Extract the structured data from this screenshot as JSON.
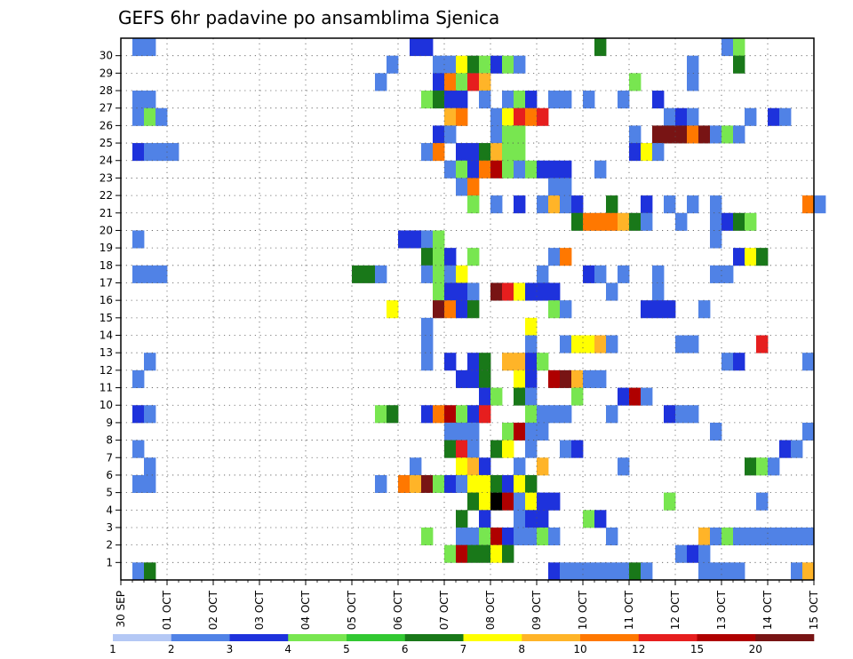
{
  "chart_data": {
    "type": "heatmap",
    "title": "GEFS 6hr padavine po ansamblima Sjenica",
    "xlabel": "",
    "ylabel": "",
    "x_tick_labels": [
      "30 SEP",
      "01 OCT",
      "02 OCT",
      "03 OCT",
      "04 OCT",
      "05 OCT",
      "06 OCT",
      "07 OCT",
      "08 OCT",
      "09 OCT",
      "10 OCT",
      "11 OCT",
      "12 OCT",
      "13 OCT",
      "14 OCT",
      "15 OCT"
    ],
    "y_tick_labels": [
      "1",
      "2",
      "3",
      "4",
      "5",
      "6",
      "7",
      "8",
      "9",
      "10",
      "11",
      "12",
      "13",
      "14",
      "15",
      "16",
      "17",
      "18",
      "19",
      "20",
      "21",
      "22",
      "23",
      "24",
      "25",
      "26",
      "27",
      "28",
      "29",
      "30"
    ],
    "time_steps_per_day": 4,
    "num_members": 31,
    "grid": true,
    "colorbar": {
      "position": "bottom",
      "bounds": [
        1,
        2,
        3,
        4,
        5,
        6,
        7,
        8,
        10,
        12,
        15,
        20
      ],
      "labels": [
        "1",
        "2",
        "3",
        "4",
        "5",
        "6",
        "7",
        "8",
        "10",
        "12",
        "15",
        "20"
      ],
      "colors": [
        "#b4c8f5",
        "#5082e6",
        "#1e32dc",
        "#78e650",
        "#32c832",
        "#197819",
        "#ffff00",
        "#ffb428",
        "#ff7800",
        "#e61e1e",
        "#af0000",
        "#781414"
      ]
    },
    "cells": [
      [
        30,
        1,
        1
      ],
      [
        30,
        2,
        1
      ],
      [
        30,
        25,
        2
      ],
      [
        30,
        26,
        2
      ],
      [
        30,
        41,
        5
      ],
      [
        30,
        52,
        1
      ],
      [
        30,
        53,
        3
      ],
      [
        29,
        23,
        1
      ],
      [
        29,
        27,
        1
      ],
      [
        29,
        28,
        1
      ],
      [
        29,
        29,
        6
      ],
      [
        29,
        30,
        5
      ],
      [
        29,
        31,
        3
      ],
      [
        29,
        32,
        2
      ],
      [
        29,
        33,
        3
      ],
      [
        29,
        34,
        1
      ],
      [
        29,
        49,
        1
      ],
      [
        29,
        53,
        5
      ],
      [
        28,
        22,
        1
      ],
      [
        28,
        27,
        2
      ],
      [
        28,
        28,
        8
      ],
      [
        28,
        29,
        3
      ],
      [
        28,
        30,
        9
      ],
      [
        28,
        31,
        7
      ],
      [
        28,
        44,
        3
      ],
      [
        28,
        49,
        1
      ],
      [
        27,
        1,
        1
      ],
      [
        27,
        2,
        1
      ],
      [
        27,
        26,
        3
      ],
      [
        27,
        27,
        5
      ],
      [
        27,
        28,
        2
      ],
      [
        27,
        29,
        2
      ],
      [
        27,
        31,
        1
      ],
      [
        27,
        33,
        1
      ],
      [
        27,
        34,
        3
      ],
      [
        27,
        35,
        2
      ],
      [
        27,
        37,
        1
      ],
      [
        27,
        38,
        1
      ],
      [
        27,
        40,
        1
      ],
      [
        27,
        43,
        1
      ],
      [
        27,
        46,
        2
      ],
      [
        26,
        1,
        1
      ],
      [
        26,
        2,
        3
      ],
      [
        26,
        3,
        1
      ],
      [
        26,
        28,
        7
      ],
      [
        26,
        29,
        8
      ],
      [
        26,
        32,
        1
      ],
      [
        26,
        33,
        6
      ],
      [
        26,
        34,
        9
      ],
      [
        26,
        35,
        8
      ],
      [
        26,
        36,
        9
      ],
      [
        26,
        47,
        1
      ],
      [
        26,
        48,
        2
      ],
      [
        26,
        49,
        1
      ],
      [
        26,
        54,
        1
      ],
      [
        26,
        56,
        2
      ],
      [
        26,
        57,
        1
      ],
      [
        25,
        27,
        2
      ],
      [
        25,
        28,
        1
      ],
      [
        25,
        32,
        1
      ],
      [
        25,
        33,
        3
      ],
      [
        25,
        34,
        3
      ],
      [
        25,
        44,
        1
      ],
      [
        25,
        46,
        11
      ],
      [
        25,
        47,
        11
      ],
      [
        25,
        48,
        11
      ],
      [
        25,
        49,
        8
      ],
      [
        25,
        50,
        11
      ],
      [
        25,
        51,
        1
      ],
      [
        25,
        52,
        3
      ],
      [
        25,
        53,
        1
      ],
      [
        24,
        1,
        2
      ],
      [
        24,
        2,
        1
      ],
      [
        24,
        3,
        1
      ],
      [
        24,
        4,
        1
      ],
      [
        24,
        26,
        1
      ],
      [
        24,
        27,
        8
      ],
      [
        24,
        29,
        2
      ],
      [
        24,
        30,
        2
      ],
      [
        24,
        31,
        5
      ],
      [
        24,
        32,
        7
      ],
      [
        24,
        33,
        3
      ],
      [
        24,
        34,
        3
      ],
      [
        24,
        44,
        2
      ],
      [
        24,
        45,
        6
      ],
      [
        24,
        46,
        1
      ],
      [
        23,
        28,
        1
      ],
      [
        23,
        29,
        3
      ],
      [
        23,
        30,
        2
      ],
      [
        23,
        31,
        8
      ],
      [
        23,
        32,
        10
      ],
      [
        23,
        33,
        3
      ],
      [
        23,
        34,
        1
      ],
      [
        23,
        35,
        3
      ],
      [
        23,
        36,
        2
      ],
      [
        23,
        37,
        2
      ],
      [
        23,
        38,
        2
      ],
      [
        23,
        41,
        1
      ],
      [
        22,
        29,
        1
      ],
      [
        22,
        30,
        8
      ],
      [
        22,
        37,
        1
      ],
      [
        22,
        38,
        1
      ],
      [
        21,
        30,
        3
      ],
      [
        21,
        32,
        1
      ],
      [
        21,
        34,
        2
      ],
      [
        21,
        36,
        1
      ],
      [
        21,
        37,
        7
      ],
      [
        21,
        38,
        1
      ],
      [
        21,
        39,
        2
      ],
      [
        21,
        42,
        5
      ],
      [
        21,
        45,
        2
      ],
      [
        21,
        47,
        1
      ],
      [
        21,
        49,
        1
      ],
      [
        21,
        51,
        1
      ],
      [
        21,
        59,
        8
      ],
      [
        21,
        60,
        1
      ],
      [
        20,
        39,
        5
      ],
      [
        20,
        40,
        8
      ],
      [
        20,
        41,
        8
      ],
      [
        20,
        42,
        8
      ],
      [
        20,
        43,
        7
      ],
      [
        20,
        44,
        5
      ],
      [
        20,
        45,
        1
      ],
      [
        20,
        48,
        1
      ],
      [
        20,
        51,
        1
      ],
      [
        20,
        52,
        2
      ],
      [
        20,
        53,
        5
      ],
      [
        20,
        54,
        3
      ],
      [
        19,
        1,
        1
      ],
      [
        19,
        24,
        2
      ],
      [
        19,
        25,
        2
      ],
      [
        19,
        26,
        1
      ],
      [
        19,
        27,
        3
      ],
      [
        19,
        51,
        1
      ],
      [
        18,
        26,
        5
      ],
      [
        18,
        27,
        3
      ],
      [
        18,
        28,
        2
      ],
      [
        18,
        30,
        3
      ],
      [
        18,
        37,
        1
      ],
      [
        18,
        38,
        8
      ],
      [
        18,
        53,
        2
      ],
      [
        18,
        54,
        6
      ],
      [
        18,
        55,
        5
      ],
      [
        17,
        1,
        1
      ],
      [
        17,
        2,
        1
      ],
      [
        17,
        3,
        1
      ],
      [
        17,
        20,
        5
      ],
      [
        17,
        21,
        5
      ],
      [
        17,
        22,
        1
      ],
      [
        17,
        26,
        1
      ],
      [
        17,
        27,
        3
      ],
      [
        17,
        28,
        1
      ],
      [
        17,
        29,
        6
      ],
      [
        17,
        36,
        1
      ],
      [
        17,
        40,
        2
      ],
      [
        17,
        41,
        1
      ],
      [
        17,
        43,
        1
      ],
      [
        17,
        46,
        1
      ],
      [
        17,
        51,
        1
      ],
      [
        17,
        52,
        1
      ],
      [
        16,
        27,
        3
      ],
      [
        16,
        28,
        2
      ],
      [
        16,
        29,
        2
      ],
      [
        16,
        30,
        1
      ],
      [
        16,
        32,
        11
      ],
      [
        16,
        33,
        9
      ],
      [
        16,
        34,
        6
      ],
      [
        16,
        35,
        2
      ],
      [
        16,
        36,
        2
      ],
      [
        16,
        37,
        2
      ],
      [
        16,
        42,
        1
      ],
      [
        16,
        46,
        1
      ],
      [
        15,
        23,
        6
      ],
      [
        15,
        27,
        11
      ],
      [
        15,
        28,
        8
      ],
      [
        15,
        29,
        2
      ],
      [
        15,
        30,
        5
      ],
      [
        15,
        37,
        3
      ],
      [
        15,
        38,
        1
      ],
      [
        15,
        45,
        2
      ],
      [
        15,
        46,
        2
      ],
      [
        15,
        47,
        2
      ],
      [
        15,
        50,
        1
      ],
      [
        14,
        26,
        1
      ],
      [
        14,
        35,
        6
      ],
      [
        13,
        26,
        1
      ],
      [
        13,
        35,
        1
      ],
      [
        13,
        38,
        1
      ],
      [
        13,
        39,
        6
      ],
      [
        13,
        40,
        6
      ],
      [
        13,
        41,
        7
      ],
      [
        13,
        42,
        1
      ],
      [
        13,
        48,
        1
      ],
      [
        13,
        49,
        1
      ],
      [
        13,
        55,
        9
      ],
      [
        12,
        2,
        1
      ],
      [
        12,
        26,
        1
      ],
      [
        12,
        28,
        2
      ],
      [
        12,
        30,
        2
      ],
      [
        12,
        31,
        5
      ],
      [
        12,
        33,
        7
      ],
      [
        12,
        34,
        7
      ],
      [
        12,
        35,
        2
      ],
      [
        12,
        36,
        3
      ],
      [
        12,
        52,
        1
      ],
      [
        12,
        53,
        2
      ],
      [
        12,
        59,
        1
      ],
      [
        11,
        1,
        1
      ],
      [
        11,
        29,
        2
      ],
      [
        11,
        30,
        2
      ],
      [
        11,
        31,
        5
      ],
      [
        11,
        34,
        6
      ],
      [
        11,
        35,
        2
      ],
      [
        11,
        37,
        10
      ],
      [
        11,
        38,
        11
      ],
      [
        11,
        39,
        7
      ],
      [
        11,
        40,
        1
      ],
      [
        11,
        41,
        1
      ],
      [
        10,
        31,
        2
      ],
      [
        10,
        32,
        3
      ],
      [
        10,
        34,
        5
      ],
      [
        10,
        35,
        1
      ],
      [
        10,
        39,
        3
      ],
      [
        10,
        43,
        2
      ],
      [
        10,
        44,
        10
      ],
      [
        10,
        45,
        1
      ],
      [
        9,
        1,
        2
      ],
      [
        9,
        2,
        1
      ],
      [
        9,
        22,
        3
      ],
      [
        9,
        23,
        5
      ],
      [
        9,
        26,
        2
      ],
      [
        9,
        27,
        8
      ],
      [
        9,
        28,
        10
      ],
      [
        9,
        29,
        3
      ],
      [
        9,
        30,
        2
      ],
      [
        9,
        31,
        9
      ],
      [
        9,
        35,
        3
      ],
      [
        9,
        36,
        1
      ],
      [
        9,
        37,
        1
      ],
      [
        9,
        38,
        1
      ],
      [
        9,
        42,
        1
      ],
      [
        9,
        47,
        2
      ],
      [
        9,
        48,
        1
      ],
      [
        9,
        49,
        1
      ],
      [
        8,
        28,
        1
      ],
      [
        8,
        29,
        1
      ],
      [
        8,
        30,
        1
      ],
      [
        8,
        33,
        3
      ],
      [
        8,
        34,
        10
      ],
      [
        8,
        35,
        1
      ],
      [
        8,
        36,
        1
      ],
      [
        8,
        51,
        1
      ],
      [
        8,
        59,
        1
      ],
      [
        7,
        1,
        1
      ],
      [
        7,
        28,
        5
      ],
      [
        7,
        29,
        9
      ],
      [
        7,
        30,
        1
      ],
      [
        7,
        32,
        5
      ],
      [
        7,
        33,
        6
      ],
      [
        7,
        35,
        1
      ],
      [
        7,
        38,
        1
      ],
      [
        7,
        39,
        2
      ],
      [
        7,
        57,
        2
      ],
      [
        7,
        58,
        1
      ],
      [
        6,
        2,
        1
      ],
      [
        6,
        25,
        1
      ],
      [
        6,
        29,
        6
      ],
      [
        6,
        30,
        7
      ],
      [
        6,
        31,
        2
      ],
      [
        6,
        34,
        1
      ],
      [
        6,
        36,
        7
      ],
      [
        6,
        43,
        1
      ],
      [
        6,
        54,
        5
      ],
      [
        6,
        55,
        3
      ],
      [
        6,
        56,
        1
      ],
      [
        5,
        1,
        1
      ],
      [
        5,
        2,
        1
      ],
      [
        5,
        22,
        1
      ],
      [
        5,
        24,
        8
      ],
      [
        5,
        25,
        7
      ],
      [
        5,
        26,
        11
      ],
      [
        5,
        27,
        3
      ],
      [
        5,
        28,
        2
      ],
      [
        5,
        29,
        1
      ],
      [
        5,
        30,
        6
      ],
      [
        5,
        31,
        6
      ],
      [
        5,
        32,
        5
      ],
      [
        5,
        33,
        2
      ],
      [
        5,
        34,
        6
      ],
      [
        5,
        35,
        5
      ],
      [
        4,
        30,
        5
      ],
      [
        4,
        31,
        6
      ],
      [
        4,
        32,
        12
      ],
      [
        4,
        33,
        10
      ],
      [
        4,
        34,
        1
      ],
      [
        4,
        35,
        6
      ],
      [
        4,
        36,
        2
      ],
      [
        4,
        37,
        2
      ],
      [
        4,
        47,
        3
      ],
      [
        4,
        55,
        1
      ],
      [
        3,
        29,
        5
      ],
      [
        3,
        31,
        2
      ],
      [
        3,
        34,
        1
      ],
      [
        3,
        35,
        2
      ],
      [
        3,
        36,
        2
      ],
      [
        3,
        40,
        3
      ],
      [
        3,
        41,
        2
      ],
      [
        2,
        26,
        3
      ],
      [
        2,
        29,
        1
      ],
      [
        2,
        30,
        1
      ],
      [
        2,
        31,
        3
      ],
      [
        2,
        32,
        10
      ],
      [
        2,
        33,
        2
      ],
      [
        2,
        34,
        1
      ],
      [
        2,
        35,
        1
      ],
      [
        2,
        36,
        3
      ],
      [
        2,
        37,
        1
      ],
      [
        2,
        42,
        1
      ],
      [
        2,
        50,
        7
      ],
      [
        2,
        51,
        1
      ],
      [
        2,
        52,
        3
      ],
      [
        2,
        53,
        1
      ],
      [
        2,
        54,
        1
      ],
      [
        2,
        55,
        1
      ],
      [
        2,
        56,
        1
      ],
      [
        2,
        57,
        1
      ],
      [
        2,
        58,
        1
      ],
      [
        2,
        59,
        1
      ],
      [
        1,
        28,
        3
      ],
      [
        1,
        29,
        10
      ],
      [
        1,
        30,
        5
      ],
      [
        1,
        31,
        5
      ],
      [
        1,
        32,
        6
      ],
      [
        1,
        33,
        5
      ],
      [
        1,
        48,
        1
      ],
      [
        1,
        49,
        2
      ],
      [
        1,
        50,
        1
      ],
      [
        0,
        1,
        1
      ],
      [
        0,
        2,
        5
      ],
      [
        0,
        37,
        2
      ],
      [
        0,
        38,
        1
      ],
      [
        0,
        39,
        1
      ],
      [
        0,
        40,
        1
      ],
      [
        0,
        41,
        1
      ],
      [
        0,
        42,
        1
      ],
      [
        0,
        43,
        1
      ],
      [
        0,
        44,
        5
      ],
      [
        0,
        45,
        1
      ],
      [
        0,
        50,
        1
      ],
      [
        0,
        51,
        1
      ],
      [
        0,
        52,
        1
      ],
      [
        0,
        53,
        1
      ],
      [
        0,
        58,
        1
      ],
      [
        0,
        59,
        7
      ]
    ]
  }
}
